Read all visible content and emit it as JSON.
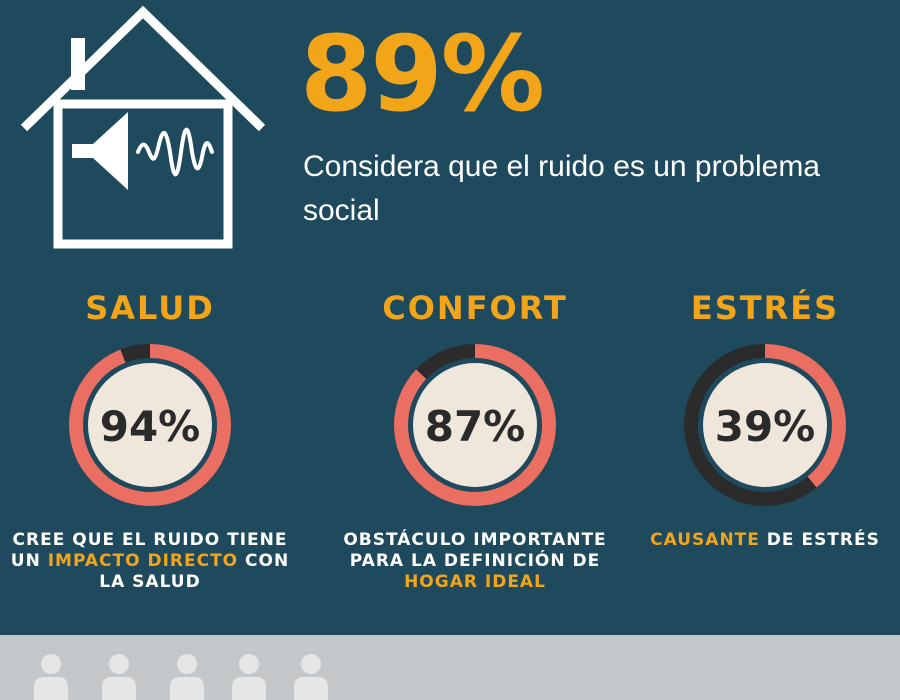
{
  "headline": {
    "value": "89%",
    "subtitle": "Considera que el ruido es un problema social"
  },
  "stats": [
    {
      "title": "SALUD",
      "value_label": "94%",
      "percent": 94,
      "desc_pre": "CREE QUE EL RUIDO TIENE UN ",
      "desc_hl": "IMPACTO DIRECTO",
      "desc_post": " CON LA SALUD"
    },
    {
      "title": "CONFORT",
      "value_label": "87%",
      "percent": 87,
      "desc_pre": "OBSTÁCULO IMPORTANTE PARA LA DEFINICIÓN DE ",
      "desc_hl": "HOGAR IDEAL",
      "desc_post": ""
    },
    {
      "title": "ESTRÉS",
      "value_label": "39%",
      "percent": 39,
      "desc_pre": "",
      "desc_hl": "CAUSANTE",
      "desc_post": " DE ESTRÉS"
    }
  ],
  "icons": {
    "house": "house-sound-icon",
    "person": "person-icon"
  },
  "colors": {
    "background": "#1f4a5e",
    "accent": "#f3a51a",
    "ring_fill": "#ea6f62",
    "ring_track": "#2b2b2b",
    "disc": "#efe7dc",
    "footer": "#c5c8ca",
    "person": "#e6e6e6"
  }
}
